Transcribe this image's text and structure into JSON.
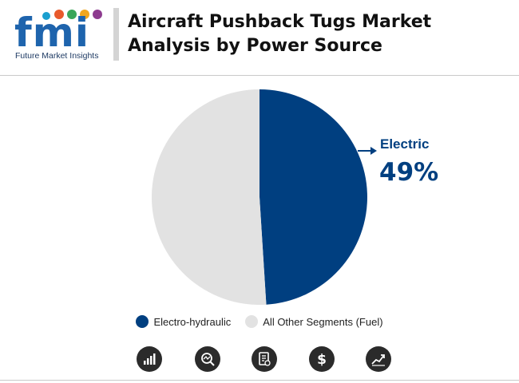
{
  "logo": {
    "letters": [
      "f",
      "m",
      "i"
    ],
    "subtitle": "Future Market Insights",
    "colors": {
      "f": "#1e64ad",
      "m": "#1e64ad",
      "i": "#1e64ad"
    }
  },
  "title": "Aircraft Pushback Tugs Market Analysis by Power Source",
  "chart_data": {
    "type": "pie",
    "slices": [
      {
        "name": "Electro-hydraulic",
        "value": 49,
        "color": "#003f80"
      },
      {
        "name": "All Other Segments (Fuel)",
        "value": 51,
        "color": "#e2e2e2"
      }
    ],
    "callout": {
      "label": "Electric",
      "value_text": "49%"
    },
    "legend": [
      {
        "name": "Electro-hydraulic",
        "color": "#003f80"
      },
      {
        "name": "All Other Segments (Fuel)",
        "color": "#e2e2e2"
      }
    ],
    "legend_position": "bottom"
  },
  "footer_icons": [
    {
      "name": "bar-chart-icon"
    },
    {
      "name": "trend-search-icon"
    },
    {
      "name": "report-document-icon"
    },
    {
      "name": "dollar-icon"
    },
    {
      "name": "growth-chart-icon"
    }
  ]
}
